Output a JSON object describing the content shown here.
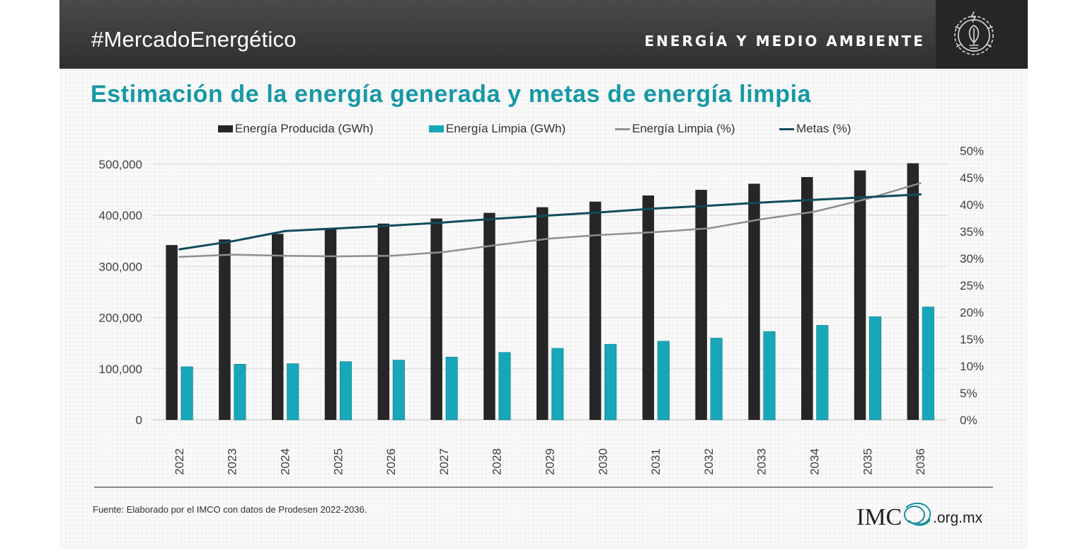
{
  "header": {
    "hashtag": "#MercadoEnergético",
    "section": "ENERGÍA Y MEDIO AMBIENTE",
    "icon": "lightbulb-leaf-icon"
  },
  "colors": {
    "banner": "#3a3a3a",
    "title": "#1698a6",
    "produced": "#262626",
    "clean": "#18a6b9",
    "clean_pct": "#8f8f8f",
    "goals": "#0f4d5a"
  },
  "footer": {
    "source": "Fuente:  Elaborado por el IMCO  con datos de Prodesen 2022-2036.",
    "logo_imco": "IMC",
    "logo_domain": ".org.mx"
  },
  "chart_data": {
    "type": "bar",
    "title": "Estimación de la energía generada y metas de energía limpia",
    "categories": [
      "2022",
      "2023",
      "2024",
      "2025",
      "2026",
      "2027",
      "2028",
      "2029",
      "2030",
      "2031",
      "2032",
      "2033",
      "2034",
      "2035",
      "2036"
    ],
    "series": [
      {
        "name": "Energía Producida (GWh)",
        "type": "bar",
        "axis": "left",
        "color": "#262626",
        "values": [
          342000,
          353000,
          364000,
          373000,
          384000,
          394000,
          405000,
          416000,
          427000,
          439000,
          450000,
          462000,
          475000,
          488000,
          502000
        ]
      },
      {
        "name": "Energía Limpia (GWh)",
        "type": "bar",
        "axis": "left",
        "color": "#18a6b9",
        "values": [
          104000,
          109000,
          110000,
          114000,
          117000,
          123000,
          132000,
          140000,
          148000,
          154000,
          160000,
          173000,
          185000,
          202000,
          221000
        ]
      },
      {
        "name": "Energía Limpia (%)",
        "type": "line",
        "axis": "right",
        "color": "#8f8f8f",
        "values": [
          0.303,
          0.307,
          0.305,
          0.304,
          0.305,
          0.312,
          0.325,
          0.337,
          0.344,
          0.349,
          0.356,
          0.373,
          0.387,
          0.411,
          0.44
        ]
      },
      {
        "name": "Metas (%)",
        "type": "line",
        "axis": "right",
        "color": "#0f4d5a",
        "values": [
          0.317,
          0.332,
          0.351,
          0.356,
          0.361,
          0.367,
          0.374,
          0.38,
          0.386,
          0.393,
          0.398,
          0.404,
          0.409,
          0.414,
          0.419
        ]
      }
    ],
    "y_left": {
      "ylim": [
        0,
        500000
      ],
      "ticks": [
        0,
        100000,
        200000,
        300000,
        400000,
        500000
      ],
      "tick_labels": [
        "0",
        "100,000",
        "200,000",
        "300,000",
        "400,000",
        "500,000"
      ]
    },
    "y_right": {
      "ylim": [
        0,
        0.5
      ],
      "ticks": [
        0,
        0.05,
        0.1,
        0.15,
        0.2,
        0.25,
        0.3,
        0.35,
        0.4,
        0.45,
        0.5
      ],
      "tick_labels": [
        "0%",
        "5%",
        "10%",
        "15%",
        "20%",
        "25%",
        "30%",
        "35%",
        "40%",
        "45%",
        "50%"
      ]
    },
    "legend": "top",
    "grid": true
  }
}
